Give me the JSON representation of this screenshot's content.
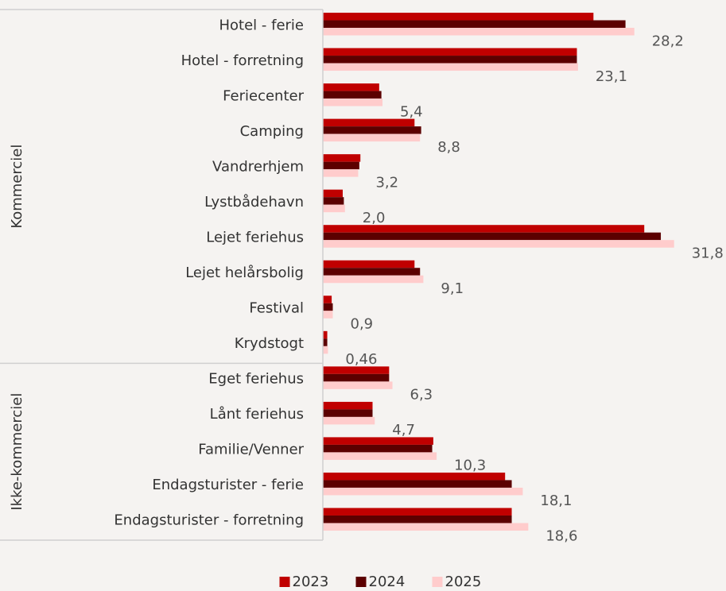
{
  "chart_data": {
    "type": "hbar",
    "categories": [
      "Hotel - ferie",
      "Hotel - forretning",
      "Feriecenter",
      "Camping",
      "Vandrerhjem",
      "Lystbådehavn",
      "Lejet feriehus",
      "Lejet helårsbolig",
      "Festival",
      "Krydstogt",
      "Eget feriehus",
      "Lånt feriehus",
      "Familie/Venner",
      "Endagsturister - ferie",
      "Endagsturister - forretning"
    ],
    "groups": [
      {
        "label": "Kommerciel",
        "count": 10
      },
      {
        "label": "Ikke-kommerciel",
        "count": 5
      }
    ],
    "series": [
      {
        "name": "2023",
        "color": "#c00000",
        "values": [
          24.5,
          23.0,
          5.1,
          8.3,
          3.4,
          1.8,
          29.1,
          8.3,
          0.8,
          0.4,
          6.0,
          4.5,
          10.0,
          16.5,
          17.1
        ]
      },
      {
        "name": "2024",
        "color": "#5c0000",
        "values": [
          27.4,
          23.0,
          5.3,
          8.9,
          3.3,
          1.9,
          30.6,
          8.8,
          0.9,
          0.4,
          6.0,
          4.5,
          9.9,
          17.1,
          17.1
        ]
      },
      {
        "name": "2025",
        "color": "#ffcccc",
        "values": [
          28.2,
          23.1,
          5.4,
          8.8,
          3.2,
          2.0,
          31.8,
          9.1,
          0.9,
          0.46,
          6.3,
          4.7,
          10.3,
          18.1,
          18.6
        ],
        "value_labels": [
          "28,2",
          "23,1",
          "5,4",
          "8,8",
          "3,2",
          "2,0",
          "31,8",
          "9,1",
          "0,9",
          "0,46",
          "6,3",
          "4,7",
          "10,3",
          "18,1",
          "18,6"
        ]
      }
    ],
    "xlim": [
      0,
      36.5
    ],
    "legend": "bottom"
  }
}
